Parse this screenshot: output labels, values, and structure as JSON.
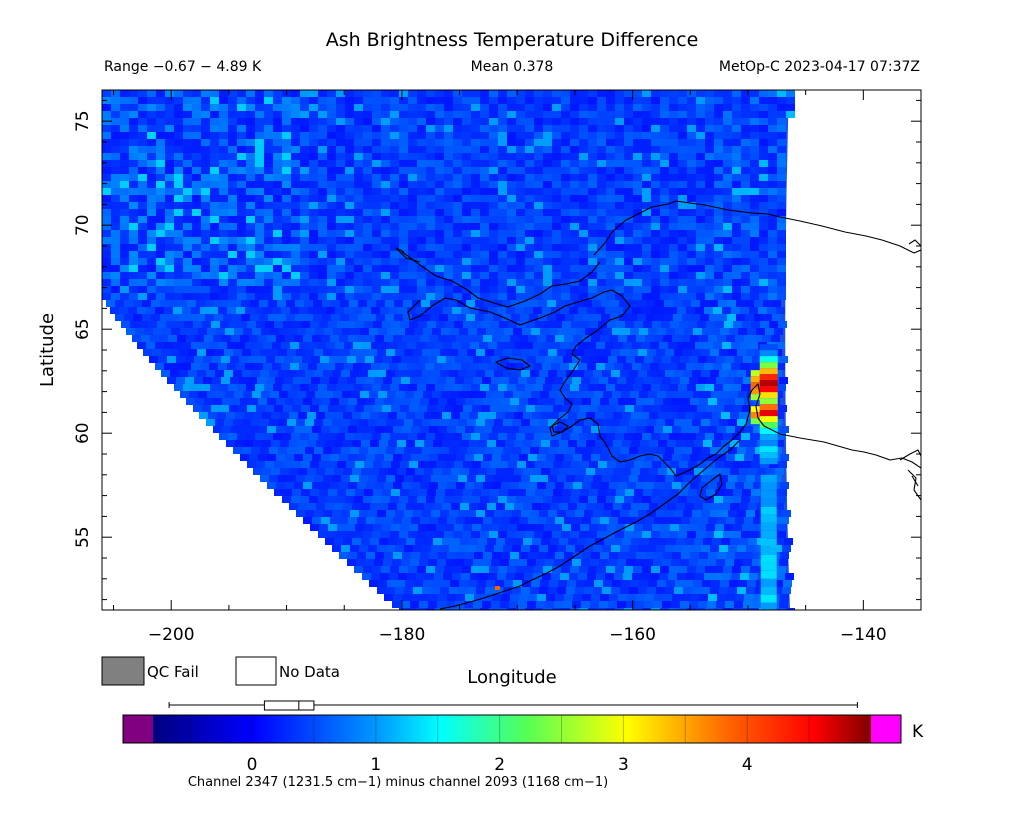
{
  "chart_data": {
    "type": "heatmap",
    "title": "Ash Brightness Temperature Difference",
    "subtitle_left": "Range −0.67 − 4.89 K",
    "subtitle_center": "Mean 0.378",
    "subtitle_right": "MetOp-C 2023-04-17 07:37Z",
    "xlabel": "Longitude",
    "ylabel": "Latitude",
    "xlim": [
      -206,
      -135
    ],
    "ylim": [
      51.5,
      76.5
    ],
    "xticks": [
      -200,
      -180,
      -160,
      -140
    ],
    "xtick_labels": [
      "−200",
      "−180",
      "−160",
      "−140"
    ],
    "yticks": [
      55,
      60,
      65,
      70,
      75
    ],
    "ytick_labels": [
      "55",
      "60",
      "65",
      "70",
      "75"
    ],
    "value_range": [
      -0.67,
      4.89
    ],
    "mean": 0.378,
    "units": "K",
    "hotspot": {
      "lon": -148.2,
      "lat_min": 59.8,
      "lat_max": 63.8,
      "peak_value": 4.89
    },
    "colorbar": {
      "min": -0.8,
      "max": 5.0,
      "ticks": [
        0,
        1,
        2,
        3,
        4
      ],
      "tick_labels": [
        "0",
        "1",
        "2",
        "3",
        "4"
      ],
      "unit_label": "K",
      "caption": "Channel 2347 (1231.5 cm−1) minus channel 2093 (1168 cm−1)",
      "range_marker": {
        "min": -0.67,
        "max": 4.89,
        "mean": 0.378,
        "lower_quartile": 0.1,
        "upper_quartile": 0.5
      }
    },
    "legend": [
      {
        "label": "QC Fail",
        "color": "#808080"
      },
      {
        "label": "No Data",
        "color": "#ffffff"
      }
    ]
  }
}
